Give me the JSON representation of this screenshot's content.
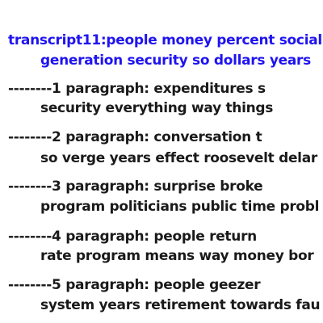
{
  "doc": {
    "title_line1": "transcript11:people money percent social",
    "title_line2": "generation security so dollars years",
    "paragraphs": [
      {
        "line1": "--------1 paragraph: expenditures s",
        "line2": "security everything way things"
      },
      {
        "line1": "--------2 paragraph: conversation t",
        "line2": "so verge years effect roosevelt delar"
      },
      {
        "line1": "--------3 paragraph: surprise broke",
        "line2": "program politicians public time probl"
      },
      {
        "line1": "--------4 paragraph: people return",
        "line2": "rate program means way money bor"
      },
      {
        "line1": "--------5 paragraph: people geezer",
        "line2": "system years retirement towards fau"
      }
    ]
  },
  "colors": {
    "title": "#1f14f0",
    "body": "#1a1a1a",
    "background": "#ffffff"
  }
}
